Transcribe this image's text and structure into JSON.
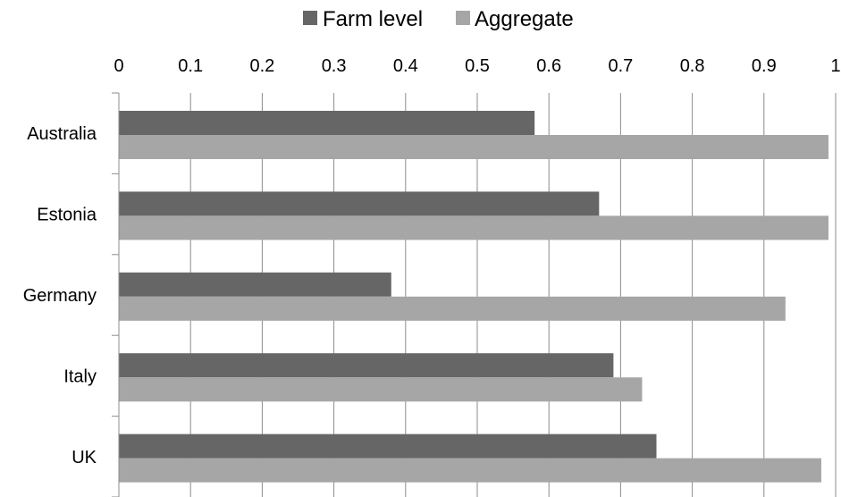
{
  "chart_data": {
    "type": "bar",
    "orientation": "horizontal",
    "title": "",
    "xlabel": "",
    "ylabel": "",
    "categories": [
      "Australia",
      "Estonia",
      "Germany",
      "Italy",
      "UK"
    ],
    "series": [
      {
        "name": "Farm level",
        "color": "#666666",
        "values": [
          0.58,
          0.67,
          0.38,
          0.69,
          0.75
        ]
      },
      {
        "name": "Aggregate",
        "color": "#a6a6a6",
        "values": [
          0.99,
          0.99,
          0.93,
          0.73,
          0.98
        ]
      }
    ],
    "xlim": [
      0,
      1
    ],
    "xticks": [
      "0",
      "0.1",
      "0.2",
      "0.3",
      "0.4",
      "0.5",
      "0.6",
      "0.7",
      "0.8",
      "0.9",
      "1"
    ],
    "x_axis_position": "top",
    "grid": true,
    "legend_position": "top"
  }
}
